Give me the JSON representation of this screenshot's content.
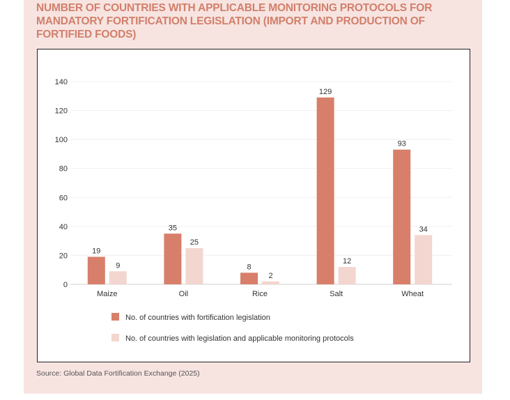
{
  "title": "NUMBER OF COUNTRIES WITH APPLICABLE MONITORING PROTOCOLS FOR MANDATORY FORTIFICATION LEGISLATION (IMPORT AND PRODUCTION OF FORTIFIED FOODS)",
  "source": "Source: Global Data Fortification Exchange (2025)",
  "colors": {
    "series1": "#d77f6a",
    "series2": "#f3d6cf",
    "title": "#d27f6a",
    "panel": "#f7e4e1"
  },
  "chart_data": {
    "type": "bar",
    "title": "NUMBER OF COUNTRIES WITH APPLICABLE MONITORING PROTOCOLS FOR MANDATORY FORTIFICATION LEGISLATION (IMPORT AND PRODUCTION OF FORTIFIED FOODS)",
    "xlabel": "",
    "ylabel": "",
    "categories": [
      "Maize",
      "Oil",
      "Rice",
      "Salt",
      "Wheat"
    ],
    "series": [
      {
        "name": "No. of countries with fortification legislation",
        "values": [
          19,
          35,
          8,
          129,
          93
        ],
        "color": "#d77f6a"
      },
      {
        "name": "No. of countries with legislation and applicable monitoring protocols",
        "values": [
          9,
          25,
          2,
          12,
          34
        ],
        "color": "#f3d6cf"
      }
    ],
    "ylim": [
      0,
      140
    ],
    "yticks": [
      0,
      20,
      40,
      60,
      80,
      100,
      120,
      140
    ],
    "grid": true,
    "legend_position": "bottom-left",
    "data_labels": true
  }
}
